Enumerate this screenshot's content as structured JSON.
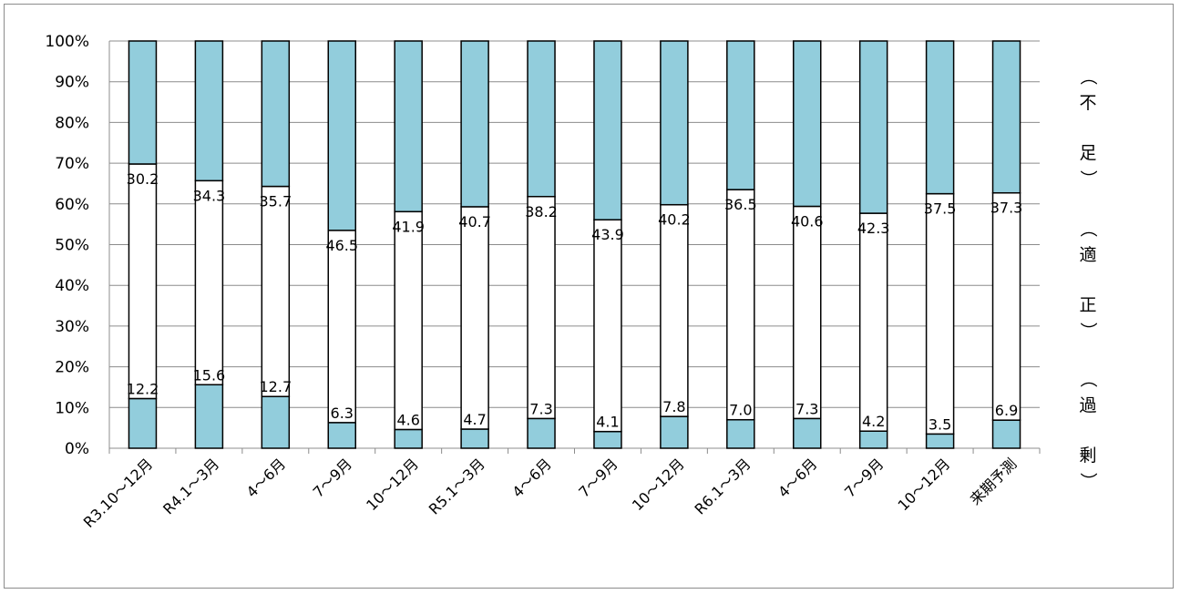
{
  "chart_data": {
    "type": "bar",
    "stacked": true,
    "percent": true,
    "categories": [
      "R3.10～12月",
      "R4.1～3月",
      "4～6月",
      "7～9月",
      "10～12月",
      "R5.1～3月",
      "4～6月",
      "7～9月",
      "10～12月",
      "R6.1～3月",
      "4～6月",
      "7～9月",
      "10～12月",
      "来期予測"
    ],
    "series": [
      {
        "name": "過剰",
        "color": "#92cddc",
        "values": [
          12.2,
          15.6,
          12.7,
          6.3,
          4.6,
          4.7,
          7.3,
          4.1,
          7.8,
          7.0,
          7.3,
          4.2,
          3.5,
          6.9
        ]
      },
      {
        "name": "適正",
        "color": "#ffffff",
        "values": [
          57.6,
          50.1,
          51.6,
          47.2,
          53.5,
          54.6,
          54.5,
          52.0,
          52.0,
          56.5,
          52.1,
          53.5,
          59.0,
          55.8
        ]
      },
      {
        "name": "不足",
        "color": "#92cddc",
        "values": [
          30.2,
          34.3,
          35.7,
          46.5,
          41.9,
          40.7,
          38.2,
          43.9,
          40.2,
          36.5,
          40.6,
          42.3,
          37.5,
          37.3
        ]
      }
    ],
    "data_labels": {
      "over": [
        "12.2",
        "15.6",
        "12.7",
        "6.3",
        "4.6",
        "4.7",
        "7.3",
        "4.1",
        "7.8",
        "7.0",
        "7.3",
        "4.2",
        "3.5",
        "6.9"
      ],
      "short": [
        "30.2",
        "34.3",
        "35.7",
        "46.5",
        "41.9",
        "40.7",
        "38.2",
        "43.9",
        "40.2",
        "36.5",
        "40.6",
        "42.3",
        "37.5",
        "37.3"
      ]
    },
    "yticks": [
      "0%",
      "10%",
      "20%",
      "30%",
      "40%",
      "50%",
      "60%",
      "70%",
      "80%",
      "90%",
      "100%"
    ],
    "ylim": [
      0,
      100
    ],
    "grid": true,
    "side_labels": [
      {
        "text": "（不足）",
        "chars": [
          "（",
          "不",
          "足",
          "）"
        ]
      },
      {
        "text": "（適正）",
        "chars": [
          "（",
          "適",
          "正",
          "）"
        ]
      },
      {
        "text": "（過剰）",
        "chars": [
          "（",
          "過",
          "剰",
          "）"
        ]
      }
    ]
  }
}
